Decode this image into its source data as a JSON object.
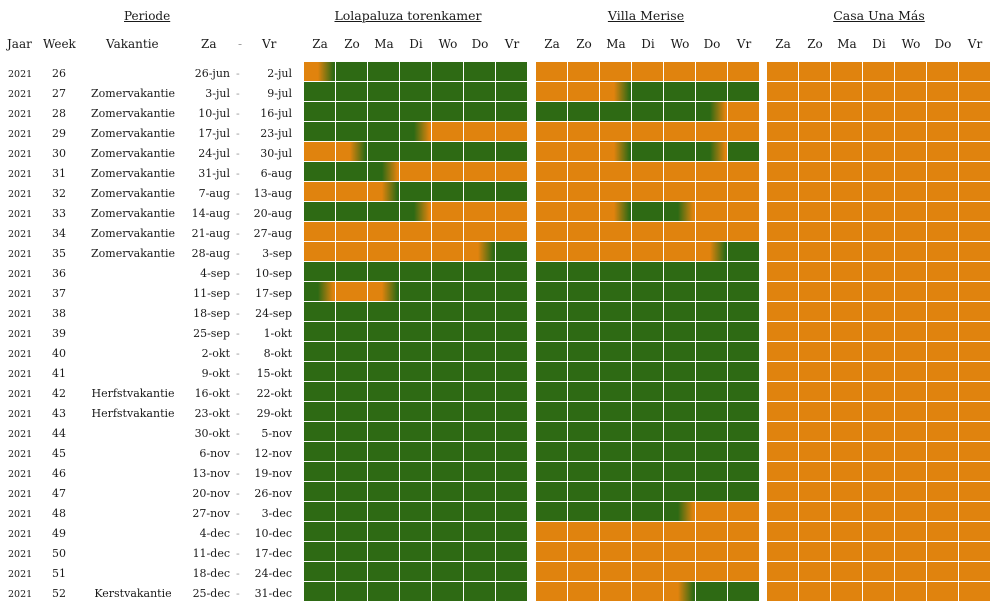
{
  "colors": {
    "available": "#2e6a14",
    "booked": "#e0830e",
    "grid_line": "#ffffff"
  },
  "header": {
    "periode": "Periode",
    "jaar": "Jaar",
    "week": "Week",
    "vakantie": "Vakantie",
    "za": "Za",
    "dash": "-",
    "vr": "Vr"
  },
  "properties": [
    {
      "name": "Lolapaluza torenkamer",
      "days": [
        "Za",
        "Zo",
        "Ma",
        "Di",
        "Wo",
        "Do",
        "Vr"
      ]
    },
    {
      "name": "Villa Merise",
      "days": [
        "Za",
        "Zo",
        "Ma",
        "Di",
        "Wo",
        "Do",
        "Vr"
      ]
    },
    {
      "name": "Casa Una Más",
      "days": [
        "Za",
        "Zo",
        "Ma",
        "Di",
        "Wo",
        "Do",
        "Vr"
      ]
    }
  ],
  "legend_codes": "G = available (green), O = booked (orange), g = green→orange transition, o = orange→green transition",
  "rows": [
    {
      "year": "2021",
      "week": "26",
      "vakantie": "",
      "from": "26-jun",
      "sep": "-",
      "to": "2-jul",
      "status": [
        "oGGGGGG",
        "OOOOOOO",
        "OOOOOOO"
      ]
    },
    {
      "year": "2021",
      "week": "27",
      "vakantie": "Zomervakantie",
      "from": "3-jul",
      "sep": "-",
      "to": "9-jul",
      "status": [
        "GGGGGGG",
        "OOoGGGG",
        "OOOOOOO"
      ]
    },
    {
      "year": "2021",
      "week": "28",
      "vakantie": "Zomervakantie",
      "from": "10-jul",
      "sep": "-",
      "to": "16-jul",
      "status": [
        "GGGGGGG",
        "GGGGGgO",
        "OOOOOOO"
      ]
    },
    {
      "year": "2021",
      "week": "29",
      "vakantie": "Zomervakantie",
      "from": "17-jul",
      "sep": "-",
      "to": "23-jul",
      "status": [
        "GGGgOOO",
        "OOOOOOO",
        "OOOOOOO"
      ]
    },
    {
      "year": "2021",
      "week": "30",
      "vakantie": "Zomervakantie",
      "from": "24-jul",
      "sep": "-",
      "to": "30-jul",
      "status": [
        "OoGGGGG",
        "OOoGGgG",
        "OOOOOOO"
      ]
    },
    {
      "year": "2021",
      "week": "31",
      "vakantie": "Zomervakantie",
      "from": "31-jul",
      "sep": "-",
      "to": "6-aug",
      "status": [
        "GGgOOOO",
        "OOOOOOO",
        "OOOOOOO"
      ]
    },
    {
      "year": "2021",
      "week": "32",
      "vakantie": "Zomervakantie",
      "from": "7-aug",
      "sep": "-",
      "to": "13-aug",
      "status": [
        "OOoGGGG",
        "OOOOOOO",
        "OOOOOOO"
      ]
    },
    {
      "year": "2021",
      "week": "33",
      "vakantie": "Zomervakantie",
      "from": "14-aug",
      "sep": "-",
      "to": "20-aug",
      "status": [
        "GGGgOOO",
        "OOoGgOO",
        "OOOOOOO"
      ]
    },
    {
      "year": "2021",
      "week": "34",
      "vakantie": "Zomervakantie",
      "from": "21-aug",
      "sep": "-",
      "to": "27-aug",
      "status": [
        "OOOOOOO",
        "OOOOOOO",
        "OOOOOOO"
      ]
    },
    {
      "year": "2021",
      "week": "35",
      "vakantie": "Zomervakantie",
      "from": "28-aug",
      "sep": "-",
      "to": "3-sep",
      "status": [
        "OOOOOoG",
        "OOOOOoG",
        "OOOOOOO"
      ]
    },
    {
      "year": "2021",
      "week": "36",
      "vakantie": "",
      "from": "4-sep",
      "sep": "-",
      "to": "10-sep",
      "status": [
        "GGGGGGG",
        "GGGGGGG",
        "OOOOOOO"
      ]
    },
    {
      "year": "2021",
      "week": "37",
      "vakantie": "",
      "from": "11-sep",
      "sep": "-",
      "to": "17-sep",
      "status": [
        "gOoGGGG",
        "GGGGGGG",
        "OOOOOOO"
      ]
    },
    {
      "year": "2021",
      "week": "38",
      "vakantie": "",
      "from": "18-sep",
      "sep": "-",
      "to": "24-sep",
      "status": [
        "GGGGGGG",
        "GGGGGGG",
        "OOOOOOO"
      ]
    },
    {
      "year": "2021",
      "week": "39",
      "vakantie": "",
      "from": "25-sep",
      "sep": "-",
      "to": "1-okt",
      "status": [
        "GGGGGGG",
        "GGGGGGG",
        "OOOOOOO"
      ]
    },
    {
      "year": "2021",
      "week": "40",
      "vakantie": "",
      "from": "2-okt",
      "sep": "-",
      "to": "8-okt",
      "status": [
        "GGGGGGG",
        "GGGGGGG",
        "OOOOOOO"
      ]
    },
    {
      "year": "2021",
      "week": "41",
      "vakantie": "",
      "from": "9-okt",
      "sep": "-",
      "to": "15-okt",
      "status": [
        "GGGGGGG",
        "GGGGGGG",
        "OOOOOOO"
      ]
    },
    {
      "year": "2021",
      "week": "42",
      "vakantie": "Herfstvakantie",
      "from": "16-okt",
      "sep": "-",
      "to": "22-okt",
      "status": [
        "GGGGGGG",
        "GGGGGGG",
        "OOOOOOO"
      ]
    },
    {
      "year": "2021",
      "week": "43",
      "vakantie": "Herfstvakantie",
      "from": "23-okt",
      "sep": "-",
      "to": "29-okt",
      "status": [
        "GGGGGGG",
        "GGGGGGG",
        "OOOOOOO"
      ]
    },
    {
      "year": "2021",
      "week": "44",
      "vakantie": "",
      "from": "30-okt",
      "sep": "-",
      "to": "5-nov",
      "status": [
        "GGGGGGG",
        "GGGGGGG",
        "OOOOOOO"
      ]
    },
    {
      "year": "2021",
      "week": "45",
      "vakantie": "",
      "from": "6-nov",
      "sep": "-",
      "to": "12-nov",
      "status": [
        "GGGGGGG",
        "GGGGGGG",
        "OOOOOOO"
      ]
    },
    {
      "year": "2021",
      "week": "46",
      "vakantie": "",
      "from": "13-nov",
      "sep": "-",
      "to": "19-nov",
      "status": [
        "GGGGGGG",
        "GGGGGGG",
        "OOOOOOO"
      ]
    },
    {
      "year": "2021",
      "week": "47",
      "vakantie": "",
      "from": "20-nov",
      "sep": "-",
      "to": "26-nov",
      "status": [
        "GGGGGGG",
        "GGGGGGG",
        "OOOOOOO"
      ]
    },
    {
      "year": "2021",
      "week": "48",
      "vakantie": "",
      "from": "27-nov",
      "sep": "-",
      "to": "3-dec",
      "status": [
        "GGGGGGG",
        "GGGGgOO",
        "OOOOOOO"
      ]
    },
    {
      "year": "2021",
      "week": "49",
      "vakantie": "",
      "from": "4-dec",
      "sep": "-",
      "to": "10-dec",
      "status": [
        "GGGGGGG",
        "OOOOOOO",
        "OOOOOOO"
      ]
    },
    {
      "year": "2021",
      "week": "50",
      "vakantie": "",
      "from": "11-dec",
      "sep": "-",
      "to": "17-dec",
      "status": [
        "GGGGGGG",
        "OOOOOOO",
        "OOOOOOO"
      ]
    },
    {
      "year": "2021",
      "week": "51",
      "vakantie": "",
      "from": "18-dec",
      "sep": "-",
      "to": "24-dec",
      "status": [
        "GGGGGGG",
        "OOOOOOO",
        "OOOOOOO"
      ]
    },
    {
      "year": "2021",
      "week": "52",
      "vakantie": "Kerstvakantie",
      "from": "25-dec",
      "sep": "-",
      "to": "31-dec",
      "status": [
        "GGGGGGG",
        "OOOOoGG",
        "OOOOOOO"
      ]
    }
  ]
}
